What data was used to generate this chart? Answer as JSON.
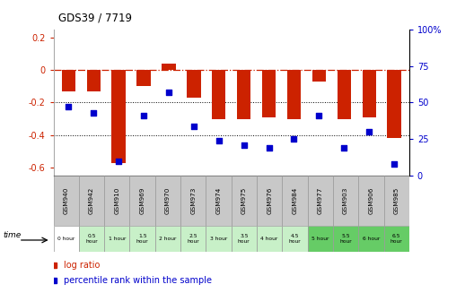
{
  "title": "GDS39 / 7719",
  "samples": [
    "GSM940",
    "GSM942",
    "GSM910",
    "GSM969",
    "GSM970",
    "GSM973",
    "GSM974",
    "GSM975",
    "GSM976",
    "GSM984",
    "GSM977",
    "GSM903",
    "GSM906",
    "GSM985"
  ],
  "time_labels": [
    "0 hour",
    "0.5\nhour",
    "1 hour",
    "1.5\nhour",
    "2 hour",
    "2.5\nhour",
    "3 hour",
    "3.5\nhour",
    "4 hour",
    "4.5\nhour",
    "5 hour",
    "5.5\nhour",
    "6 hour",
    "6.5\nhour"
  ],
  "log_ratio": [
    -0.13,
    -0.13,
    -0.57,
    -0.1,
    0.04,
    -0.17,
    -0.3,
    -0.3,
    -0.29,
    -0.3,
    -0.07,
    -0.3,
    -0.29,
    -0.42
  ],
  "percentile": [
    47,
    43,
    10,
    41,
    57,
    34,
    24,
    21,
    19,
    25,
    41,
    19,
    30,
    8
  ],
  "bar_color": "#cc2200",
  "dot_color": "#0000cc",
  "ylim_left": [
    -0.65,
    0.25
  ],
  "ylim_right": [
    0,
    100
  ],
  "yticks_left": [
    -0.6,
    -0.4,
    -0.2,
    0.0,
    0.2
  ],
  "yticks_right": [
    0,
    25,
    50,
    75,
    100
  ],
  "hline_y": 0.0,
  "dotted_lines": [
    -0.2,
    -0.4
  ],
  "time_colors_light": "#c8f0c8",
  "time_colors_dark": "#66cc66",
  "sample_bg_color": "#c8c8c8",
  "legend_red_label": "log ratio",
  "legend_blue_label": "percentile rank within the sample"
}
